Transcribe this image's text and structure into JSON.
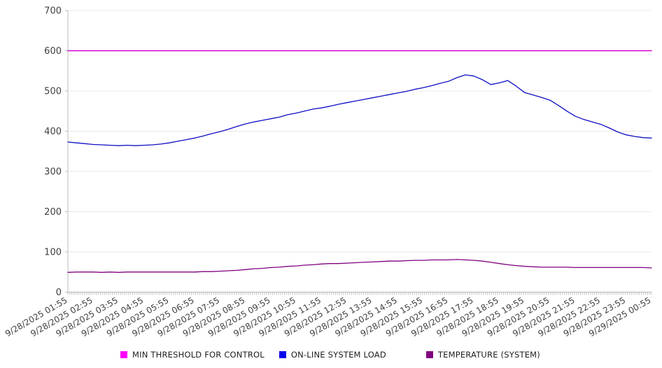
{
  "chart_data": {
    "type": "line",
    "title": "",
    "xlabel": "",
    "ylabel": "",
    "ylim": [
      0,
      700
    ],
    "y_ticks": [
      0,
      100,
      200,
      300,
      400,
      500,
      600,
      700
    ],
    "grid": "horizontal",
    "legend_position": "bottom",
    "x_points_per_label": 3,
    "minor_tick_count": 288,
    "axis_color": "#bdbdbd",
    "grid_color": "#e9e9e9",
    "tick_color": "#9e9e9e",
    "label_color": "#404040",
    "x_labels": [
      "9/28/2025 01:55",
      "9/28/2025 02:55",
      "9/28/2025 03:55",
      "9/28/2025 04:55",
      "9/28/2025 05:55",
      "9/28/2025 06:55",
      "9/28/2025 07:55",
      "9/28/2025 08:55",
      "9/28/2025 09:55",
      "9/28/2025 10:55",
      "9/28/2025 11:55",
      "9/28/2025 12:55",
      "9/28/2025 13:55",
      "9/28/2025 14:55",
      "9/28/2025 15:55",
      "9/28/2025 16:55",
      "9/28/2025 17:55",
      "9/28/2025 18:55",
      "9/28/2025 19:55",
      "9/28/2025 20:55",
      "9/28/2025 21:55",
      "9/28/2025 22:55",
      "9/28/2025 23:55",
      "9/29/2025 00:55"
    ],
    "series": [
      {
        "name": "MIN THRESHOLD FOR CONTROL",
        "color": "#d400d4",
        "swatch": "#ff00ff",
        "values": [
          600,
          600,
          600,
          600,
          600,
          600,
          600,
          600,
          600,
          600,
          600,
          600,
          600,
          600,
          600,
          600,
          600,
          600,
          600,
          600,
          600,
          600,
          600,
          600,
          600,
          600,
          600,
          600,
          600,
          600,
          600,
          600,
          600,
          600,
          600,
          600,
          600,
          600,
          600,
          600,
          600,
          600,
          600,
          600,
          600,
          600,
          600,
          600,
          600,
          600,
          600,
          600,
          600,
          600,
          600,
          600,
          600,
          600,
          600,
          600,
          600,
          600,
          600,
          600,
          600,
          600,
          600,
          600,
          600,
          600
        ]
      },
      {
        "name": "ON-LINE SYSTEM LOAD",
        "color": "#0f0fc4",
        "swatch": "#0000f0",
        "values": [
          373,
          371,
          369,
          367,
          366,
          365,
          364,
          365,
          364,
          365,
          366,
          368,
          371,
          375,
          379,
          383,
          388,
          394,
          399,
          405,
          412,
          418,
          423,
          427,
          431,
          435,
          441,
          445,
          450,
          455,
          458,
          462,
          467,
          471,
          475,
          479,
          483,
          487,
          491,
          495,
          499,
          504,
          508,
          513,
          519,
          524,
          533,
          540,
          537,
          528,
          516,
          520,
          526,
          512,
          496,
          490,
          484,
          477,
          464,
          450,
          437,
          429,
          423,
          417,
          408,
          398,
          391,
          387,
          384,
          383
        ]
      },
      {
        "name": "TEMPERATURE (SYSTEM)",
        "color": "#800080",
        "swatch": "#800080",
        "values": [
          49,
          50,
          50,
          50,
          49,
          50,
          49,
          50,
          50,
          50,
          50,
          50,
          50,
          50,
          50,
          50,
          51,
          51,
          52,
          53,
          54,
          56,
          58,
          59,
          61,
          62,
          64,
          65,
          67,
          68,
          70,
          71,
          71,
          72,
          73,
          74,
          75,
          76,
          77,
          77,
          78,
          79,
          79,
          80,
          80,
          80,
          81,
          80,
          79,
          77,
          74,
          71,
          68,
          66,
          64,
          63,
          62,
          62,
          62,
          62,
          61,
          61,
          61,
          61,
          61,
          61,
          61,
          61,
          61,
          60
        ]
      }
    ]
  }
}
